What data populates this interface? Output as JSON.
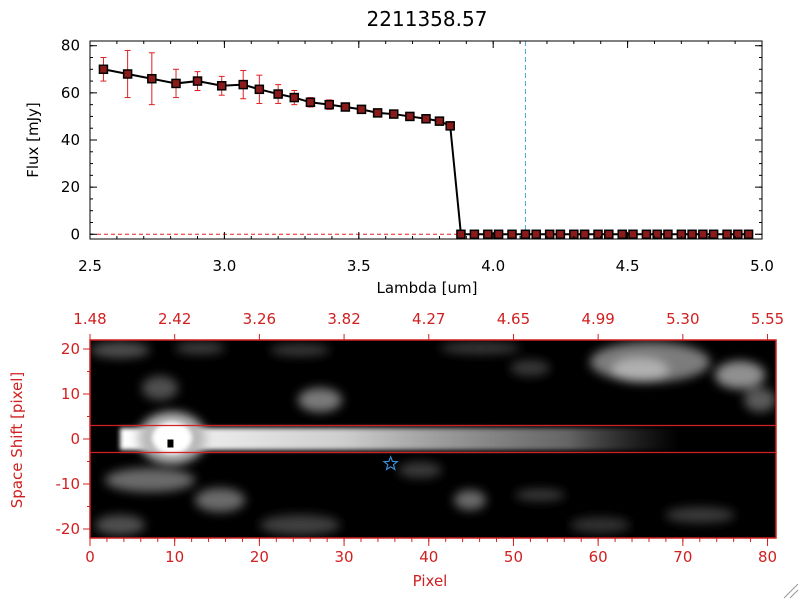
{
  "chart_data": [
    {
      "type": "line",
      "title": "2211358.57",
      "xlabel": "Lambda [um]",
      "ylabel": "Flux [mJy]",
      "xlim": [
        2.5,
        5.0
      ],
      "ylim": [
        -2,
        82
      ],
      "x_ticks": [
        "2.5",
        "3.0",
        "3.5",
        "4.0",
        "4.5",
        "5.0"
      ],
      "y_ticks": [
        "0",
        "20",
        "40",
        "60",
        "80"
      ],
      "x_tick_values": [
        2.5,
        3.0,
        3.5,
        4.0,
        4.5,
        5.0
      ],
      "y_tick_values": [
        0,
        20,
        40,
        60,
        80
      ],
      "vline_x": 4.12,
      "hline_y": 0,
      "colors": {
        "line": "#000000",
        "error": "#e02020",
        "marker_fill": "#8b1a1a",
        "vline": "#4aa8d8",
        "hline": "#e02020"
      },
      "series": [
        {
          "x": [
            2.55,
            2.64,
            2.73,
            2.82,
            2.9,
            2.99,
            3.07,
            3.13,
            3.2,
            3.26,
            3.32,
            3.39,
            3.45,
            3.51,
            3.57,
            3.63,
            3.69,
            3.75,
            3.8,
            3.84,
            3.88,
            3.93,
            3.98,
            4.02,
            4.07,
            4.12,
            4.16,
            4.21,
            4.25,
            4.3,
            4.34,
            4.39,
            4.43,
            4.48,
            4.52,
            4.57,
            4.61,
            4.65,
            4.7,
            4.74,
            4.78,
            4.82,
            4.87,
            4.91,
            4.95
          ],
          "y": [
            70,
            68,
            66,
            64,
            65,
            63,
            63.5,
            61.5,
            59.5,
            58,
            56,
            55,
            54,
            53,
            51.5,
            51,
            50,
            49,
            48,
            46,
            0,
            0,
            0,
            0,
            0,
            0,
            0,
            0,
            0,
            0,
            0,
            0,
            0,
            0,
            0,
            0,
            0,
            0,
            0,
            0,
            0,
            0,
            0,
            0,
            0
          ],
          "err": [
            5,
            10,
            11,
            6,
            4,
            4,
            6,
            6,
            4,
            3,
            2,
            2,
            1,
            1,
            0,
            0,
            0,
            0,
            0,
            0,
            0,
            0,
            0,
            0,
            0,
            0,
            0,
            0,
            0,
            0,
            0,
            0,
            0,
            0,
            0,
            0,
            0,
            0,
            0,
            0,
            0,
            0,
            0,
            0,
            0
          ]
        }
      ]
    },
    {
      "type": "heatmap",
      "xlabel": "Pixel",
      "ylabel": "Space Shift [pixel]",
      "xlim": [
        0,
        81
      ],
      "ylim": [
        -22,
        22
      ],
      "x_ticks": [
        "0",
        "10",
        "20",
        "30",
        "40",
        "50",
        "60",
        "70",
        "80"
      ],
      "x_tick_values": [
        0,
        10,
        20,
        30,
        40,
        50,
        60,
        70,
        80
      ],
      "y_ticks": [
        "-20",
        "-10",
        "0",
        "10",
        "20"
      ],
      "y_tick_values": [
        -20,
        -10,
        0,
        10,
        20
      ],
      "top_ticks": [
        "1.48",
        "2.42",
        "3.26",
        "3.82",
        "4.27",
        "4.65",
        "4.99",
        "5.30",
        "5.55"
      ],
      "top_tick_values": [
        0,
        10,
        20,
        30,
        40,
        50,
        60,
        70,
        80
      ],
      "aperture_lines_y": [
        3,
        -3
      ],
      "source_marker": [
        9.5,
        -1
      ],
      "star_marker": [
        35.5,
        -5.5
      ],
      "colors": {
        "axis": "#d02020",
        "star": "#3a8fd8",
        "frame": "#d02020"
      }
    }
  ]
}
